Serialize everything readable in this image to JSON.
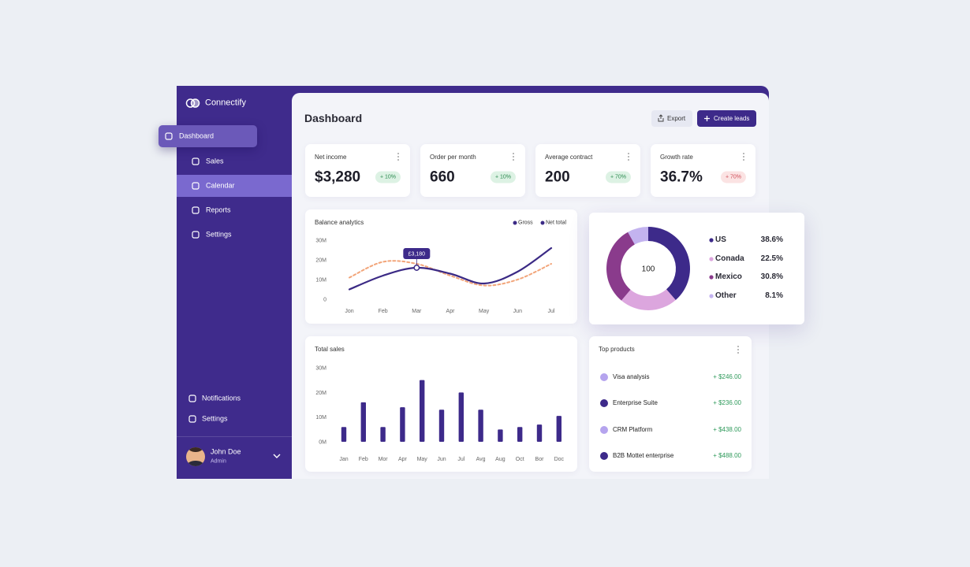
{
  "sidebar": {
    "brand": "Connectify",
    "nav": [
      "Dashboard",
      "Sales",
      "Calendar",
      "Reports",
      "Settings"
    ],
    "footer_nav": [
      "Notifications",
      "Settings"
    ],
    "user": {
      "name": "John Doe",
      "role": "Admin"
    }
  },
  "header": {
    "title": "Dashboard",
    "actions": [
      "Export",
      "Create leads"
    ]
  },
  "stats": [
    {
      "label": "Net income",
      "value": "$3,280",
      "change": "+ 10%"
    },
    {
      "label": "Order per month",
      "value": "660",
      "change": "+ 10%"
    },
    {
      "label": "Average contract",
      "value": "200",
      "change": "+ 70%"
    },
    {
      "label": "Growth rate",
      "value": "36.7%",
      "change": "+ 70%"
    }
  ],
  "chart_data": [
    {
      "type": "line",
      "title": "Balance analytics",
      "categories": [
        "Jon",
        "Feb",
        "Mar",
        "Apr",
        "May",
        "Jun",
        "Jul"
      ],
      "series": [
        {
          "name": "Gross",
          "color": "#3b2a85",
          "values": [
            5,
            12,
            16,
            13,
            8,
            14,
            26
          ]
        },
        {
          "name": "Net total",
          "color": "#f2a57a",
          "values": [
            11,
            19,
            18,
            12,
            7,
            10,
            18
          ]
        }
      ],
      "ylim": [
        0,
        30
      ],
      "yticks": [
        0,
        {
          "value": 10,
          "label": "10M"
        },
        {
          "value": 20,
          "label": "20M"
        },
        {
          "value": 30,
          "label": "30M"
        }
      ],
      "annotation": "£3,180"
    },
    {
      "type": "donut",
      "center_label": "100",
      "categories": [
        "US",
        "Conada",
        "Mexico",
        "Other"
      ],
      "values": [
        38.6,
        22.5,
        30.8,
        8.1
      ],
      "value_labels": [
        "38.6%",
        "22.5%",
        "30.8%",
        "8.1%"
      ],
      "colors": [
        "#3d2a8a",
        "#dca6de",
        "#8a3b8c",
        "#c3b3ef"
      ]
    },
    {
      "type": "bar",
      "title": "Total sales",
      "categories": [
        "Jan",
        "Feb",
        "Mor",
        "Apr",
        "May",
        "Jun",
        "Jul",
        "Avg",
        "Aug",
        "Oct",
        "Bor",
        "Doc"
      ],
      "values": [
        6,
        16,
        6,
        14,
        25,
        13,
        20,
        13,
        5,
        6,
        7,
        10.5
      ],
      "color": "#3d2a8a",
      "ylim": [
        0,
        30
      ],
      "yticks": [
        {
          "value": 0,
          "label": "0M"
        },
        {
          "value": 10,
          "label": "10M"
        },
        {
          "value": 20,
          "label": "20M"
        },
        {
          "value": 30,
          "label": "30M"
        }
      ]
    }
  ],
  "top_products": {
    "title": "Top products",
    "items": [
      {
        "name": "Visa analysis",
        "amount": "+ $246.00"
      },
      {
        "name": "Enterprise Suite",
        "amount": "+ $236.00"
      },
      {
        "name": "CRM Platform",
        "amount": "+ $438.00"
      },
      {
        "name": "B2B Mottet enterprise",
        "amount": "+ $488.00"
      }
    ]
  }
}
